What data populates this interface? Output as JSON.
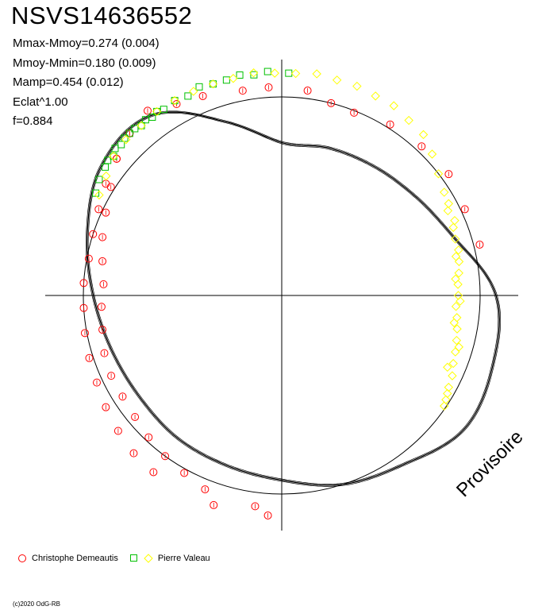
{
  "header": {
    "title": "NSVS14636552",
    "stats": [
      "Mmax-Mmoy=0.274 (0.004)",
      "Mmoy-Mmin=0.180 (0.009)",
      "Mamp=0.454 (0.012)",
      "Eclat^1.00",
      "f=0.884"
    ]
  },
  "watermark": "Provisoire",
  "copyright": "(c)2020 OdG-RB",
  "legend": {
    "items": [
      {
        "label": "Christophe Demeautis",
        "marker": "circle",
        "color": "#ff0000"
      },
      {
        "label": "Pierre Valeau",
        "marker": "square",
        "color": "#00c000"
      },
      {
        "label": "",
        "marker": "diamond",
        "color": "#ffff00"
      }
    ]
  },
  "chart_data": {
    "type": "scatter",
    "projection": "polar",
    "reference_radius": 1.0,
    "range": [
      -1.2,
      1.2
    ],
    "axes_lines": true,
    "fit_curve": {
      "description_free": true,
      "phase": [
        0.0,
        0.05,
        0.1,
        0.15,
        0.2,
        0.25,
        0.3,
        0.35,
        0.4,
        0.45,
        0.5,
        0.55,
        0.6,
        0.65,
        0.7,
        0.75,
        0.8,
        0.85,
        0.9,
        0.95,
        1.0
      ],
      "radius": [
        0.77,
        0.78,
        0.8,
        0.84,
        0.92,
        1.08,
        1.12,
        1.14,
        1.05,
        1.0,
        0.93,
        0.9,
        0.89,
        0.88,
        0.9,
        0.95,
        1.03,
        1.12,
        1.12,
        0.92,
        0.77
      ]
    },
    "series": [
      {
        "name": "Christophe Demeautis",
        "marker": "circle",
        "color": "#ff0000",
        "points": [
          [
            0.51,
            1.11
          ],
          [
            0.55,
            1.11
          ],
          [
            0.52,
            1.07
          ],
          [
            0.6,
            1.1
          ],
          [
            0.56,
            1.05
          ],
          [
            0.62,
            1.09
          ],
          [
            0.58,
            1.02
          ],
          [
            0.64,
            1.07
          ],
          [
            0.6,
            1.0
          ],
          [
            0.66,
            1.05
          ],
          [
            0.62,
            0.98
          ],
          [
            0.68,
            1.03
          ],
          [
            0.64,
            0.96
          ],
          [
            0.7,
            1.02
          ],
          [
            0.66,
            0.95
          ],
          [
            0.72,
            1.01
          ],
          [
            0.68,
            0.95
          ],
          [
            0.74,
            1.0
          ],
          [
            0.7,
            0.94
          ],
          [
            0.76,
            1.0
          ],
          [
            0.72,
            0.92
          ],
          [
            0.78,
            0.99
          ],
          [
            0.74,
            0.91
          ],
          [
            0.8,
            1.0
          ],
          [
            0.76,
            0.9
          ],
          [
            0.82,
            1.02
          ],
          [
            0.78,
            0.92
          ],
          [
            0.84,
            1.05
          ],
          [
            0.8,
            0.95
          ],
          [
            0.86,
            1.08
          ],
          [
            0.82,
            0.98
          ],
          [
            0.88,
            1.12
          ],
          [
            0.84,
            1.02
          ],
          [
            0.9,
            1.15
          ],
          [
            0.86,
            1.08
          ],
          [
            0.92,
            1.1
          ],
          [
            0.88,
            1.12
          ],
          [
            0.94,
            1.08
          ],
          [
            0.97,
            1.05
          ],
          [
            0.99,
            1.05
          ],
          [
            0.02,
            1.04
          ],
          [
            0.04,
            1.0
          ],
          [
            0.06,
            0.99
          ],
          [
            0.09,
            1.02
          ],
          [
            0.12,
            1.03
          ],
          [
            0.15,
            1.04
          ],
          [
            0.18,
            1.02
          ],
          [
            0.21,
            1.03
          ]
        ]
      },
      {
        "name": "Pierre Valeau",
        "marker": "square",
        "color": "#00c000",
        "points": [
          [
            0.83,
            1.07
          ],
          [
            0.84,
            1.09
          ],
          [
            0.85,
            1.1
          ],
          [
            0.855,
            1.11
          ],
          [
            0.86,
            1.1
          ],
          [
            0.865,
            1.12
          ],
          [
            0.87,
            1.11
          ],
          [
            0.875,
            1.12
          ],
          [
            0.88,
            1.12
          ],
          [
            0.885,
            1.12
          ],
          [
            0.89,
            1.11
          ],
          [
            0.895,
            1.12
          ],
          [
            0.9,
            1.11
          ],
          [
            0.905,
            1.12
          ],
          [
            0.91,
            1.11
          ],
          [
            0.92,
            1.12
          ],
          [
            0.93,
            1.11
          ],
          [
            0.94,
            1.13
          ],
          [
            0.95,
            1.12
          ],
          [
            0.96,
            1.12
          ],
          [
            0.97,
            1.13
          ],
          [
            0.98,
            1.12
          ],
          [
            0.99,
            1.13
          ],
          [
            0.005,
            1.12
          ]
        ]
      },
      {
        "name": "",
        "marker": "diamond",
        "color": "#ffff00",
        "points": [
          [
            0.83,
            1.05
          ],
          [
            0.845,
            1.07
          ],
          [
            0.86,
            1.1
          ],
          [
            0.875,
            1.11
          ],
          [
            0.89,
            1.11
          ],
          [
            0.905,
            1.12
          ],
          [
            0.92,
            1.12
          ],
          [
            0.935,
            1.12
          ],
          [
            0.95,
            1.12
          ],
          [
            0.965,
            1.12
          ],
          [
            0.98,
            1.13
          ],
          [
            0.995,
            1.12
          ],
          [
            0.01,
            1.12
          ],
          [
            0.025,
            1.13
          ],
          [
            0.04,
            1.12
          ],
          [
            0.055,
            1.12
          ],
          [
            0.07,
            1.11
          ],
          [
            0.085,
            1.11
          ],
          [
            0.1,
            1.09
          ],
          [
            0.115,
            1.08
          ],
          [
            0.13,
            1.04
          ],
          [
            0.145,
            1.0
          ],
          [
            0.16,
            0.97
          ],
          [
            0.175,
            0.94
          ],
          [
            0.19,
            0.93
          ],
          [
            0.2,
            0.92
          ],
          [
            0.21,
            0.92
          ],
          [
            0.22,
            0.91
          ],
          [
            0.23,
            0.9
          ],
          [
            0.24,
            0.89
          ],
          [
            0.25,
            0.89
          ],
          [
            0.26,
            0.88
          ],
          [
            0.27,
            0.89
          ],
          [
            0.28,
            0.9
          ],
          [
            0.29,
            0.91
          ],
          [
            0.3,
            0.92
          ],
          [
            0.31,
            0.93
          ],
          [
            0.32,
            0.95
          ],
          [
            0.33,
            0.96
          ],
          [
            0.34,
            0.98
          ],
          [
            0.185,
            0.95
          ],
          [
            0.215,
            0.9
          ],
          [
            0.235,
            0.88
          ],
          [
            0.255,
            0.9
          ],
          [
            0.275,
            0.88
          ],
          [
            0.295,
            0.93
          ],
          [
            0.315,
            0.91
          ],
          [
            0.335,
            0.97
          ],
          [
            0.345,
            0.99
          ],
          [
            0.17,
            0.96
          ]
        ]
      }
    ]
  }
}
